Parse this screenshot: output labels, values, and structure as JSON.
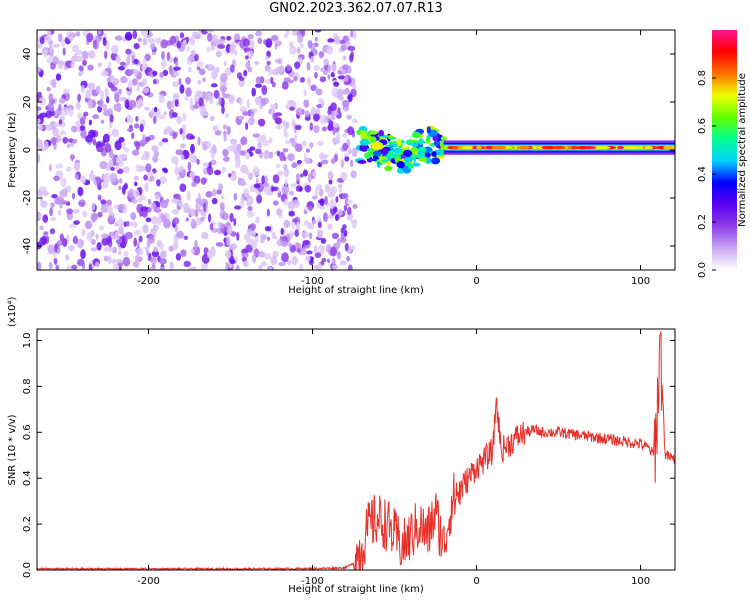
{
  "title": "GN02.2023.362.07.07.R13",
  "spectrogram": {
    "xlabel": "Height of straight line (km)",
    "ylabel": "Frequency (Hz)",
    "xlim": [
      -268,
      121
    ],
    "ylim": [
      -50,
      50
    ],
    "xticks": [
      -200,
      -100,
      0,
      100
    ],
    "yticks": [
      -40,
      -20,
      0,
      20,
      40
    ]
  },
  "colorbar": {
    "label": "Normalized spectral amplitude",
    "range": [
      0.0,
      1.0
    ],
    "ticks": [
      "0.0",
      "0.2",
      "0.4",
      "0.6",
      "0.8"
    ],
    "colors": [
      "#ffffff",
      "#c9a6f2",
      "#8f3ee8",
      "#5a00f0",
      "#0000ff",
      "#00d0ff",
      "#00ff90",
      "#60ff00",
      "#f0ff00",
      "#ff7000",
      "#ff0000",
      "#ff1493"
    ]
  },
  "chart_data": [
    {
      "type": "heatmap",
      "xlabel": "Height of straight line (km)",
      "ylabel": "Frequency (Hz)",
      "xlim": [
        -268,
        121
      ],
      "ylim": [
        -50,
        50
      ],
      "description_regions": [
        {
          "x": [
            -268,
            -75
          ],
          "y": [
            -50,
            50
          ],
          "amplitude": [
            0.05,
            0.25
          ]
        },
        {
          "x": [
            -72,
            -20
          ],
          "y": [
            -12,
            10
          ],
          "amplitude": [
            0.3,
            0.7
          ]
        },
        {
          "x": [
            -20,
            121
          ],
          "y": [
            -2,
            4
          ],
          "amplitude": [
            0.5,
            1.0
          ]
        }
      ]
    },
    {
      "type": "line",
      "series": [
        {
          "x": [
            -268,
            -200,
            -150,
            -100,
            -80,
            -75,
            -70,
            -65,
            -60,
            -55,
            -50,
            -45,
            -40,
            -35,
            -30,
            -25,
            -20,
            -15,
            -10,
            -5,
            0,
            5,
            10,
            12,
            15,
            20,
            25,
            30,
            35,
            40,
            50,
            60,
            70,
            80,
            90,
            100,
            105,
            108,
            110,
            112,
            115,
            121
          ],
          "y": [
            0.005,
            0.005,
            0.005,
            0.006,
            0.01,
            0.03,
            0.1,
            0.2,
            0.22,
            0.2,
            0.15,
            0.1,
            0.15,
            0.2,
            0.15,
            0.25,
            0.1,
            0.3,
            0.35,
            0.4,
            0.45,
            0.48,
            0.52,
            0.75,
            0.52,
            0.55,
            0.58,
            0.6,
            0.61,
            0.6,
            0.6,
            0.59,
            0.58,
            0.57,
            0.56,
            0.55,
            0.53,
            0.5,
            0.65,
            1.02,
            0.5,
            0.48
          ]
        }
      ],
      "xlabel": "Height of straight line (km)",
      "ylabel": "SNR (10 * v/v)",
      "scale_note": "(x10⁴)",
      "xlim": [
        -268,
        121
      ],
      "ylim": [
        0,
        1.05
      ],
      "xticks": [
        -200,
        -100,
        0,
        100
      ],
      "yticks": [
        "0.0",
        "0.2",
        "0.4",
        "0.6",
        "0.8",
        "1.0"
      ],
      "color": "#e8302a"
    }
  ]
}
